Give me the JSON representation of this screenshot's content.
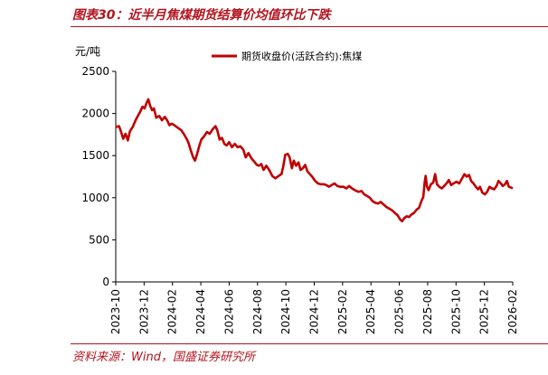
{
  "figure": {
    "title": "图表30：近半月焦煤期货结算价均值环比下跌",
    "source": "资料来源：Wind，国盛证券研究所"
  },
  "colors": {
    "accent": "#b3141e",
    "series": "#c00000"
  },
  "chart_data": {
    "type": "line",
    "ylabel": "元/吨",
    "ylim": [
      0,
      2500
    ],
    "yticks": [
      0,
      500,
      1000,
      1500,
      2000,
      2500
    ],
    "xlim": [
      "2023-10",
      "2026-02"
    ],
    "xticks": [
      "2023-10",
      "2023-12",
      "2024-02",
      "2024-04",
      "2024-06",
      "2024-08",
      "2024-10",
      "2024-12",
      "2025-02",
      "2025-04",
      "2025-06",
      "2025-08",
      "2025-10",
      "2025-12",
      "2026-02"
    ],
    "grid": false,
    "legend": {
      "position": "top-center"
    },
    "series": [
      {
        "name": "期货收盘价(活跃合约):焦煤",
        "points": [
          [
            "2023-10-01",
            1840
          ],
          [
            "2023-10-08",
            1850
          ],
          [
            "2023-10-12",
            1790
          ],
          [
            "2023-10-17",
            1700
          ],
          [
            "2023-10-22",
            1760
          ],
          [
            "2023-10-27",
            1680
          ],
          [
            "2023-11-01",
            1790
          ],
          [
            "2023-11-07",
            1840
          ],
          [
            "2023-11-13",
            1920
          ],
          [
            "2023-11-18",
            1970
          ],
          [
            "2023-11-23",
            2020
          ],
          [
            "2023-11-28",
            2080
          ],
          [
            "2023-12-02",
            2060
          ],
          [
            "2023-12-06",
            2120
          ],
          [
            "2023-12-10",
            2170
          ],
          [
            "2023-12-14",
            2090
          ],
          [
            "2023-12-18",
            2040
          ],
          [
            "2023-12-22",
            2060
          ],
          [
            "2023-12-27",
            1950
          ],
          [
            "2024-01-03",
            1970
          ],
          [
            "2024-01-09",
            1920
          ],
          [
            "2024-01-15",
            1960
          ],
          [
            "2024-01-20",
            1920
          ],
          [
            "2024-01-25",
            1860
          ],
          [
            "2024-01-30",
            1880
          ],
          [
            "2024-02-05",
            1860
          ],
          [
            "2024-02-10",
            1840
          ],
          [
            "2024-02-20",
            1800
          ],
          [
            "2024-02-25",
            1760
          ],
          [
            "2024-03-01",
            1700
          ],
          [
            "2024-03-05",
            1650
          ],
          [
            "2024-03-10",
            1560
          ],
          [
            "2024-03-15",
            1480
          ],
          [
            "2024-03-19",
            1440
          ],
          [
            "2024-03-23",
            1510
          ],
          [
            "2024-03-28",
            1610
          ],
          [
            "2024-04-02",
            1690
          ],
          [
            "2024-04-08",
            1730
          ],
          [
            "2024-04-14",
            1780
          ],
          [
            "2024-04-20",
            1760
          ],
          [
            "2024-04-26",
            1810
          ],
          [
            "2024-05-02",
            1850
          ],
          [
            "2024-05-06",
            1800
          ],
          [
            "2024-05-11",
            1690
          ],
          [
            "2024-05-16",
            1710
          ],
          [
            "2024-05-21",
            1640
          ],
          [
            "2024-05-26",
            1620
          ],
          [
            "2024-06-01",
            1660
          ],
          [
            "2024-06-07",
            1600
          ],
          [
            "2024-06-13",
            1640
          ],
          [
            "2024-06-19",
            1600
          ],
          [
            "2024-06-25",
            1610
          ],
          [
            "2024-07-01",
            1570
          ],
          [
            "2024-07-06",
            1480
          ],
          [
            "2024-07-12",
            1530
          ],
          [
            "2024-07-18",
            1470
          ],
          [
            "2024-07-24",
            1430
          ],
          [
            "2024-07-30",
            1390
          ],
          [
            "2024-08-04",
            1380
          ],
          [
            "2024-08-09",
            1400
          ],
          [
            "2024-08-14",
            1330
          ],
          [
            "2024-08-20",
            1380
          ],
          [
            "2024-08-27",
            1320
          ],
          [
            "2024-09-02",
            1260
          ],
          [
            "2024-09-09",
            1230
          ],
          [
            "2024-09-16",
            1260
          ],
          [
            "2024-09-22",
            1280
          ],
          [
            "2024-09-26",
            1380
          ],
          [
            "2024-09-30",
            1510
          ],
          [
            "2024-10-05",
            1520
          ],
          [
            "2024-10-09",
            1480
          ],
          [
            "2024-10-14",
            1350
          ],
          [
            "2024-10-18",
            1440
          ],
          [
            "2024-10-23",
            1380
          ],
          [
            "2024-10-28",
            1420
          ],
          [
            "2024-11-02",
            1330
          ],
          [
            "2024-11-07",
            1350
          ],
          [
            "2024-11-12",
            1390
          ],
          [
            "2024-11-17",
            1310
          ],
          [
            "2024-11-22",
            1280
          ],
          [
            "2024-11-27",
            1250
          ],
          [
            "2024-12-03",
            1200
          ],
          [
            "2024-12-09",
            1170
          ],
          [
            "2024-12-15",
            1160
          ],
          [
            "2024-12-21",
            1160
          ],
          [
            "2024-12-27",
            1150
          ],
          [
            "2025-01-02",
            1130
          ],
          [
            "2025-01-08",
            1150
          ],
          [
            "2025-01-14",
            1170
          ],
          [
            "2025-01-20",
            1140
          ],
          [
            "2025-01-26",
            1130
          ],
          [
            "2025-02-03",
            1130
          ],
          [
            "2025-02-09",
            1110
          ],
          [
            "2025-02-15",
            1140
          ],
          [
            "2025-02-21",
            1110
          ],
          [
            "2025-02-27",
            1090
          ],
          [
            "2025-03-05",
            1070
          ],
          [
            "2025-03-11",
            1080
          ],
          [
            "2025-03-17",
            1040
          ],
          [
            "2025-03-23",
            1020
          ],
          [
            "2025-03-29",
            1000
          ],
          [
            "2025-04-04",
            960
          ],
          [
            "2025-04-10",
            940
          ],
          [
            "2025-04-16",
            930
          ],
          [
            "2025-04-22",
            950
          ],
          [
            "2025-04-28",
            920
          ],
          [
            "2025-05-04",
            890
          ],
          [
            "2025-05-10",
            870
          ],
          [
            "2025-05-16",
            850
          ],
          [
            "2025-05-22",
            820
          ],
          [
            "2025-05-28",
            790
          ],
          [
            "2025-06-03",
            740
          ],
          [
            "2025-06-07",
            720
          ],
          [
            "2025-06-12",
            760
          ],
          [
            "2025-06-17",
            780
          ],
          [
            "2025-06-22",
            770
          ],
          [
            "2025-06-27",
            800
          ],
          [
            "2025-07-02",
            820
          ],
          [
            "2025-07-08",
            860
          ],
          [
            "2025-07-13",
            880
          ],
          [
            "2025-07-18",
            960
          ],
          [
            "2025-07-22",
            1010
          ],
          [
            "2025-07-25",
            1180
          ],
          [
            "2025-07-27",
            1260
          ],
          [
            "2025-07-30",
            1130
          ],
          [
            "2025-08-03",
            1090
          ],
          [
            "2025-08-08",
            1160
          ],
          [
            "2025-08-13",
            1180
          ],
          [
            "2025-08-17",
            1280
          ],
          [
            "2025-08-21",
            1160
          ],
          [
            "2025-08-26",
            1130
          ],
          [
            "2025-09-01",
            1110
          ],
          [
            "2025-09-06",
            1140
          ],
          [
            "2025-09-11",
            1170
          ],
          [
            "2025-09-16",
            1210
          ],
          [
            "2025-09-21",
            1150
          ],
          [
            "2025-09-26",
            1170
          ],
          [
            "2025-10-02",
            1190
          ],
          [
            "2025-10-08",
            1170
          ],
          [
            "2025-10-14",
            1230
          ],
          [
            "2025-10-19",
            1280
          ],
          [
            "2025-10-24",
            1250
          ],
          [
            "2025-10-29",
            1270
          ],
          [
            "2025-11-03",
            1200
          ],
          [
            "2025-11-08",
            1170
          ],
          [
            "2025-11-13",
            1130
          ],
          [
            "2025-11-18",
            1100
          ],
          [
            "2025-11-22",
            1130
          ],
          [
            "2025-11-27",
            1060
          ],
          [
            "2025-12-02",
            1040
          ],
          [
            "2025-12-07",
            1070
          ],
          [
            "2025-12-12",
            1130
          ],
          [
            "2025-12-17",
            1110
          ],
          [
            "2025-12-22",
            1100
          ],
          [
            "2025-12-27",
            1140
          ],
          [
            "2026-01-01",
            1200
          ],
          [
            "2026-01-06",
            1170
          ],
          [
            "2026-01-10",
            1140
          ],
          [
            "2026-01-15",
            1160
          ],
          [
            "2026-01-19",
            1200
          ],
          [
            "2026-01-23",
            1130
          ],
          [
            "2026-01-28",
            1120
          ],
          [
            "2026-02-01",
            1110
          ]
        ]
      }
    ]
  }
}
